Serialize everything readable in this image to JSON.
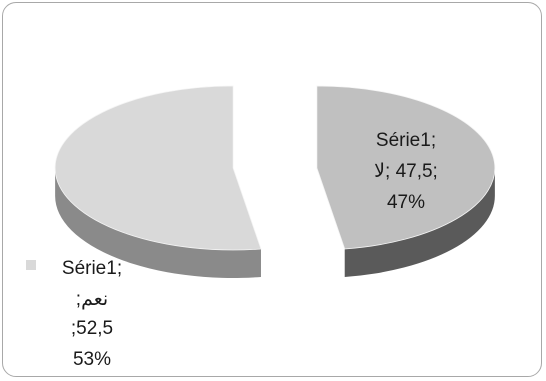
{
  "chart_data": {
    "type": "pie",
    "style": "3d-exploded",
    "categories": [
      "لا",
      "نعم"
    ],
    "values": [
      47.5,
      52.5
    ],
    "percent_labels": [
      "47%",
      "53%"
    ],
    "series": [
      {
        "name": "Série1",
        "values": [
          47.5,
          52.5
        ]
      }
    ],
    "colors": {
      "لا": "#c0c0c0",
      "نعم": "#d9d9d9"
    },
    "data_labels": [
      {
        "line1": "Série1;",
        "line2": ";47,5 ;لا",
        "line3": "47%"
      },
      {
        "line1": "Série1;",
        "line2": "نعم;",
        "line3": ";52,5",
        "line4": "53%"
      }
    ],
    "title": ""
  }
}
